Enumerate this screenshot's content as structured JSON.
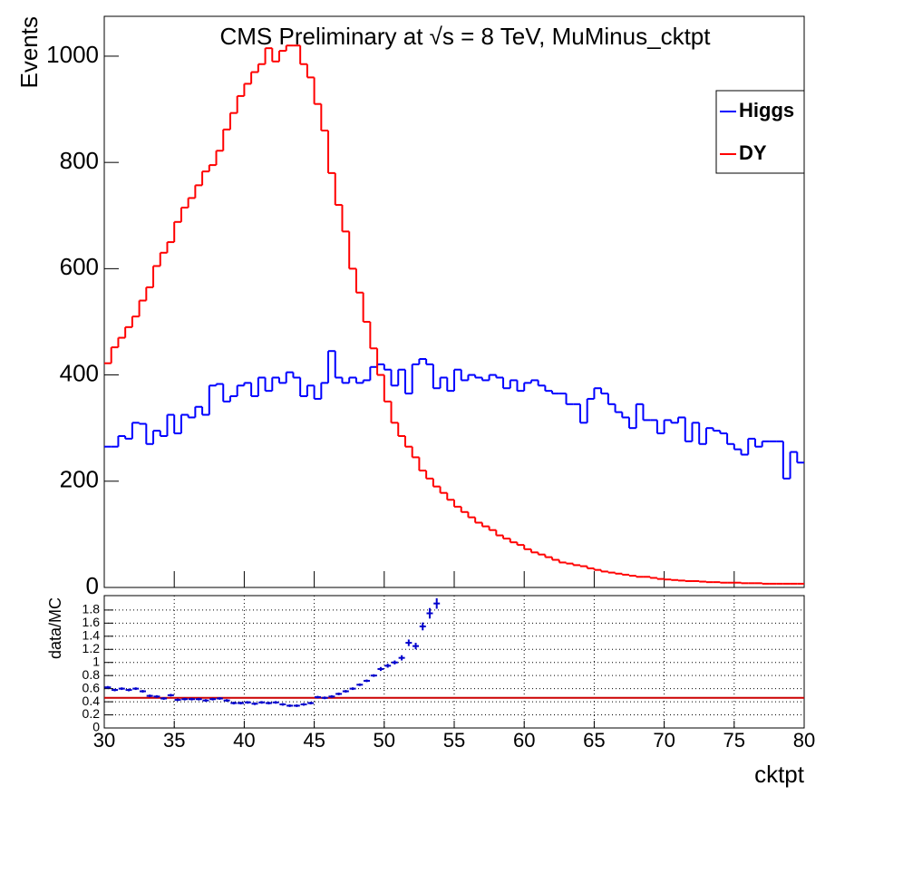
{
  "chart_data": [
    {
      "type": "histogram",
      "title": "CMS Preliminary at  √s = 8 TeV, MuMinus_cktpt",
      "ylabel": "Events",
      "bins": [
        30,
        30.5,
        31,
        31.5,
        32,
        32.5,
        33,
        33.5,
        34,
        34.5,
        35,
        35.5,
        36,
        36.5,
        37,
        37.5,
        38,
        38.5,
        39,
        39.5,
        40,
        40.5,
        41,
        41.5,
        42,
        42.5,
        43,
        43.5,
        44,
        44.5,
        45,
        45.5,
        46,
        46.5,
        47,
        47.5,
        48,
        48.5,
        49,
        49.5,
        50,
        50.5,
        51,
        51.5,
        52,
        52.5,
        53,
        53.5,
        54,
        54.5,
        55,
        55.5,
        56,
        56.5,
        57,
        57.5,
        58,
        58.5,
        59,
        59.5,
        60,
        60.5,
        61,
        61.5,
        62,
        62.5,
        63,
        63.5,
        64,
        64.5,
        65,
        65.5,
        66,
        66.5,
        67,
        67.5,
        68,
        68.5,
        69,
        69.5,
        70,
        70.5,
        71,
        71.5,
        72,
        72.5,
        73,
        73.5,
        74,
        74.5,
        75,
        75.5,
        76,
        76.5,
        77,
        77.5,
        78,
        78.5,
        79,
        79.5,
        80
      ],
      "series": [
        {
          "name": "Higgs",
          "color": "#0000ff",
          "values": [
            265,
            265,
            285,
            280,
            310,
            308,
            270,
            295,
            285,
            325,
            290,
            325,
            320,
            340,
            325,
            380,
            383,
            350,
            360,
            380,
            385,
            360,
            395,
            370,
            395,
            385,
            405,
            395,
            360,
            380,
            355,
            385,
            445,
            395,
            385,
            395,
            385,
            390,
            415,
            420,
            410,
            380,
            410,
            365,
            420,
            430,
            420,
            375,
            395,
            370,
            410,
            390,
            400,
            395,
            390,
            400,
            395,
            375,
            390,
            370,
            385,
            390,
            380,
            370,
            365,
            365,
            345,
            345,
            310,
            355,
            375,
            365,
            345,
            330,
            320,
            300,
            345,
            315,
            315,
            290,
            315,
            310,
            320,
            275,
            310,
            270,
            300,
            295,
            290,
            270,
            260,
            250,
            280,
            265,
            275,
            275,
            275,
            205,
            255,
            235
          ]
        },
        {
          "name": "DY",
          "color": "#ff0000",
          "values": [
            422,
            452,
            470,
            490,
            510,
            540,
            565,
            605,
            630,
            650,
            688,
            715,
            733,
            757,
            783,
            795,
            822,
            862,
            893,
            925,
            948,
            970,
            985,
            1015,
            990,
            1010,
            1020,
            1020,
            985,
            960,
            910,
            860,
            780,
            720,
            670,
            600,
            555,
            500,
            450,
            400,
            350,
            310,
            285,
            265,
            245,
            220,
            205,
            190,
            178,
            165,
            152,
            142,
            132,
            122,
            115,
            108,
            98,
            92,
            85,
            80,
            72,
            66,
            62,
            57,
            52,
            47,
            45,
            42,
            40,
            36,
            33,
            30,
            28,
            26,
            24,
            22,
            20,
            20,
            18,
            16,
            15,
            14,
            13,
            12,
            12,
            11,
            10,
            10,
            9,
            9,
            9,
            8,
            8,
            8,
            7,
            7,
            7,
            7,
            7,
            7
          ]
        }
      ],
      "xlim": [
        30,
        80
      ],
      "ylim": [
        0,
        1075
      ],
      "xticks": [
        30,
        35,
        40,
        45,
        50,
        55,
        60,
        65,
        70,
        75,
        80
      ],
      "yticks": [
        0,
        200,
        400,
        600,
        800,
        1000
      ],
      "legend": "upper right"
    },
    {
      "type": "errorbar",
      "ylabel": "data/MC",
      "xlabel": "cktpt",
      "color": "#0000cc",
      "x": [
        30.25,
        30.75,
        31.25,
        31.75,
        32.25,
        32.75,
        33.25,
        33.75,
        34.25,
        34.75,
        35.25,
        35.75,
        36.25,
        36.75,
        37.25,
        37.75,
        38.25,
        38.75,
        39.25,
        39.75,
        40.25,
        40.75,
        41.25,
        41.75,
        42.25,
        42.75,
        43.25,
        43.75,
        44.25,
        44.75,
        45.25,
        45.75,
        46.25,
        46.75,
        47.25,
        47.75,
        48.25,
        48.75,
        49.25,
        49.75,
        50.25,
        50.75,
        51.25,
        51.75,
        52.25,
        52.75,
        53.25,
        53.75
      ],
      "values": [
        0.62,
        0.58,
        0.6,
        0.58,
        0.6,
        0.56,
        0.49,
        0.48,
        0.45,
        0.5,
        0.43,
        0.44,
        0.44,
        0.44,
        0.42,
        0.44,
        0.45,
        0.42,
        0.38,
        0.38,
        0.39,
        0.37,
        0.39,
        0.38,
        0.39,
        0.36,
        0.34,
        0.34,
        0.36,
        0.38,
        0.47,
        0.46,
        0.48,
        0.52,
        0.56,
        0.6,
        0.66,
        0.72,
        0.8,
        0.9,
        0.95,
        1.0,
        1.07,
        1.3,
        1.25,
        1.55,
        1.75,
        1.9
      ],
      "errors": [
        0.02,
        0.02,
        0.02,
        0.02,
        0.02,
        0.02,
        0.02,
        0.02,
        0.02,
        0.02,
        0.02,
        0.02,
        0.02,
        0.02,
        0.02,
        0.02,
        0.02,
        0.02,
        0.02,
        0.02,
        0.02,
        0.02,
        0.02,
        0.02,
        0.02,
        0.02,
        0.02,
        0.02,
        0.02,
        0.02,
        0.02,
        0.02,
        0.02,
        0.02,
        0.02,
        0.02,
        0.02,
        0.02,
        0.02,
        0.03,
        0.03,
        0.03,
        0.04,
        0.05,
        0.05,
        0.06,
        0.08,
        0.08
      ],
      "ref_line": 0.46,
      "ref_color": "#cc0000",
      "xlim": [
        30,
        80
      ],
      "ylim": [
        0,
        2.02
      ],
      "xticks": [
        30,
        35,
        40,
        45,
        50,
        55,
        60,
        65,
        70,
        75,
        80
      ],
      "yticks": [
        0,
        0.2,
        0.4,
        0.6,
        0.8,
        1,
        1.2,
        1.4,
        1.6,
        1.8
      ],
      "grid": true
    }
  ]
}
